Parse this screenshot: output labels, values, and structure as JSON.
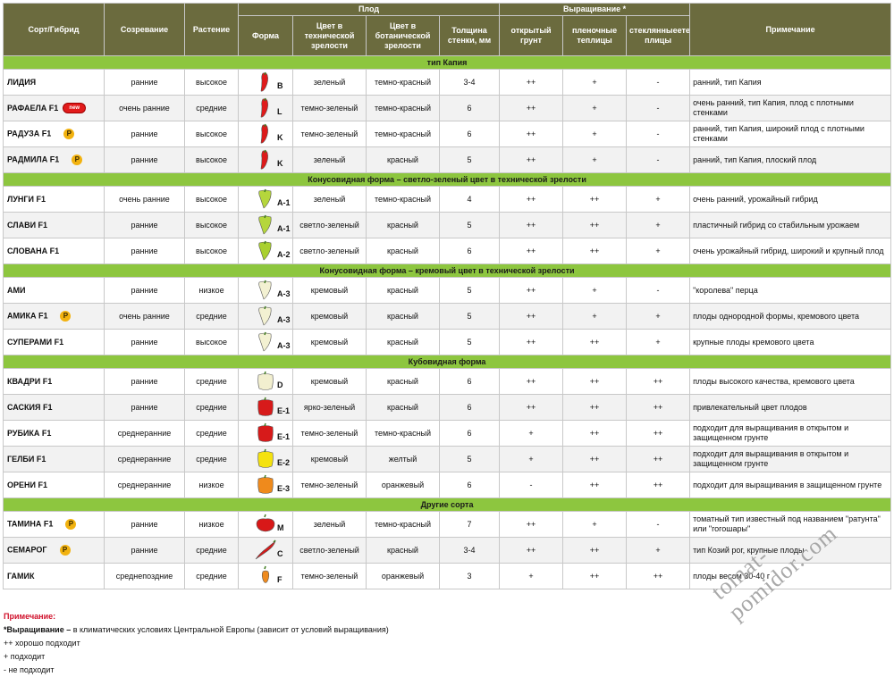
{
  "headers": {
    "variety": "Сорт/Гибрид",
    "ripening": "Созревание",
    "plant": "Растение",
    "fruit": "Плод",
    "form": "Форма",
    "color_tech": "Цвет в технической зрелости",
    "color_bot": "Цвет в ботанической зрелости",
    "wall": "Толщина стенки, мм",
    "growing": "Выращивание *",
    "open": "открытый грунт",
    "film": "пленочные теплицы",
    "glass": "стеклянныеете плицы",
    "note": "Примечание"
  },
  "groups": [
    {
      "title": "тип Капия",
      "rows": [
        {
          "name": "ЛИДИЯ",
          "badge": "",
          "ripening": "ранние",
          "plant": "высокое",
          "form": "B",
          "shape": "kapia",
          "color": "#e01b1b",
          "tech": "зеленый",
          "bot": "темно-красный",
          "wall": "3-4",
          "open": "++",
          "film": "+",
          "glass": "-",
          "note": "ранний, тип Капия"
        },
        {
          "name": "РАФАЕЛА F1",
          "badge": "new",
          "ripening": "очень ранние",
          "plant": "средние",
          "form": "L",
          "shape": "kapia",
          "color": "#e01b1b",
          "tech": "темно-зеленый",
          "bot": "темно-красный",
          "wall": "6",
          "open": "++",
          "film": "+",
          "glass": "-",
          "note": "очень ранний, тип Капия, плод с плотными стенками"
        },
        {
          "name": "РАДУЗА F1",
          "badge": "P",
          "ripening": "ранние",
          "plant": "высокое",
          "form": "K",
          "shape": "kapia",
          "color": "#dd1a1a",
          "tech": "темно-зеленый",
          "bot": "темно-красный",
          "wall": "6",
          "open": "++",
          "film": "+",
          "glass": "-",
          "note": "ранний, тип Капия, широкий плод с плотными стенками"
        },
        {
          "name": "РАДМИЛА F1",
          "badge": "P",
          "ripening": "ранние",
          "plant": "высокое",
          "form": "K",
          "shape": "kapia",
          "color": "#dd1a1a",
          "tech": "зеленый",
          "bot": "красный",
          "wall": "5",
          "open": "++",
          "film": "+",
          "glass": "-",
          "note": "ранний, тип Капия, плоский плод"
        }
      ]
    },
    {
      "title": "Конусовидная форма – светло-зеленый цвет в технической зрелости",
      "rows": [
        {
          "name": "ЛУНГИ F1",
          "badge": "",
          "ripening": "очень ранние",
          "plant": "высокое",
          "form": "A-1",
          "shape": "cone",
          "color": "#b5d63c",
          "tech": "зеленый",
          "bot": "темно-красный",
          "wall": "4",
          "open": "++",
          "film": "++",
          "glass": "+",
          "note": "очень ранний, урожайный гибрид"
        },
        {
          "name": "СЛАВИ F1",
          "badge": "",
          "ripening": "ранние",
          "plant": "высокое",
          "form": "A-1",
          "shape": "cone",
          "color": "#b5d63c",
          "tech": "светло-зеленый",
          "bot": "красный",
          "wall": "5",
          "open": "++",
          "film": "++",
          "glass": "+",
          "note": "пластичный гибрид со стабильным урожаем"
        },
        {
          "name": "СЛОВАНА F1",
          "badge": "",
          "ripening": "ранние",
          "plant": "высокое",
          "form": "A-2",
          "shape": "cone",
          "color": "#a9d030",
          "tech": "светло-зеленый",
          "bot": "красный",
          "wall": "6",
          "open": "++",
          "film": "++",
          "glass": "+",
          "note": "очень урожайный гибрид, широкий и крупный плод"
        }
      ]
    },
    {
      "title": "Конусовидная форма – кремовый цвет в технической зрелости",
      "rows": [
        {
          "name": "АМИ",
          "badge": "",
          "ripening": "ранние",
          "plant": "низкое",
          "form": "A-3",
          "shape": "cone",
          "color": "#f3f1d2",
          "tech": "кремовый",
          "bot": "красный",
          "wall": "5",
          "open": "++",
          "film": "+",
          "glass": "-",
          "note": "\"королева\" перца"
        },
        {
          "name": "АМИКА F1",
          "badge": "P",
          "ripening": "очень ранние",
          "plant": "средние",
          "form": "A-3",
          "shape": "cone",
          "color": "#f3f1d2",
          "tech": "кремовый",
          "bot": "красный",
          "wall": "5",
          "open": "++",
          "film": "+",
          "glass": "+",
          "note": "плоды однородной формы, кремового цвета"
        },
        {
          "name": "СУПЕРАМИ F1",
          "badge": "",
          "ripening": "ранние",
          "plant": "высокое",
          "form": "A-3",
          "shape": "cone",
          "color": "#f3f1d2",
          "tech": "кремовый",
          "bot": "красный",
          "wall": "5",
          "open": "++",
          "film": "++",
          "glass": "+",
          "note": "крупные плоды кремового цвета"
        }
      ]
    },
    {
      "title": "Кубовидная форма",
      "rows": [
        {
          "name": "КВАДРИ F1",
          "badge": "",
          "ripening": "ранние",
          "plant": "средние",
          "form": "D",
          "shape": "cube",
          "color": "#f2efcf",
          "tech": "кремовый",
          "bot": "красный",
          "wall": "6",
          "open": "++",
          "film": "++",
          "glass": "++",
          "note": "плоды высокого качества, кремового цвета"
        },
        {
          "name": "САСКИЯ F1",
          "badge": "",
          "ripening": "ранние",
          "plant": "средние",
          "form": "E-1",
          "shape": "cube",
          "color": "#d71a1a",
          "tech": "ярко-зеленый",
          "bot": "красный",
          "wall": "6",
          "open": "++",
          "film": "++",
          "glass": "++",
          "note": "привлекательный цвет плодов"
        },
        {
          "name": "РУБИКА F1",
          "badge": "",
          "ripening": "среднеранние",
          "plant": "средние",
          "form": "E-1",
          "shape": "cube",
          "color": "#d71a1a",
          "tech": "темно-зеленый",
          "bot": "темно-красный",
          "wall": "6",
          "open": "+",
          "film": "++",
          "glass": "++",
          "note": "подходит для выращивания в открытом и защищенном грунте"
        },
        {
          "name": "ГЕЛБИ F1",
          "badge": "",
          "ripening": "среднеранние",
          "plant": "средние",
          "form": "E-2",
          "shape": "cube",
          "color": "#f4e20e",
          "tech": "кремовый",
          "bot": "желтый",
          "wall": "5",
          "open": "+",
          "film": "++",
          "glass": "++",
          "note": "подходит для выращивания в открытом и защищенном грунте"
        },
        {
          "name": "ОРЕНИ F1",
          "badge": "",
          "ripening": "среднеранние",
          "plant": "низкое",
          "form": "E-3",
          "shape": "cube",
          "color": "#ef8a1c",
          "tech": "темно-зеленый",
          "bot": "оранжевый",
          "wall": "6",
          "open": "-",
          "film": "++",
          "glass": "++",
          "note": "подходит для выращивания в защищенном грунте"
        }
      ]
    },
    {
      "title": "Другие сорта",
      "rows": [
        {
          "name": "ТАМИНА F1",
          "badge": "P",
          "ripening": "ранние",
          "plant": "низкое",
          "form": "M",
          "shape": "tomato",
          "color": "#d81818",
          "tech": "зеленый",
          "bot": "темно-красный",
          "wall": "7",
          "open": "++",
          "film": "+",
          "glass": "-",
          "note": "томатный тип известный под названием \"ратунта\" или \"гогошары\""
        },
        {
          "name": "СЕМАРОГ",
          "badge": "P",
          "ripening": "ранние",
          "plant": "средние",
          "form": "C",
          "shape": "horn",
          "color": "#d81818",
          "tech": "светло-зеленый",
          "bot": "красный",
          "wall": "3-4",
          "open": "++",
          "film": "++",
          "glass": "+",
          "note": "тип Козий рог, крупные плоды"
        },
        {
          "name": "ГАМИК",
          "badge": "",
          "ripening": "среднепоздние",
          "plant": "средние",
          "form": "F",
          "shape": "small",
          "color": "#ee8a1e",
          "tech": "темно-зеленый",
          "bot": "оранжевый",
          "wall": "3",
          "open": "+",
          "film": "++",
          "glass": "++",
          "note": "плоды весом 30-40 г"
        }
      ]
    }
  ],
  "footer": {
    "title": "Примечание:",
    "line1_bold": "*Выращивание –",
    "line1": " в климатических условиях Центральной Европы (зависит от условий выращивания)",
    "line2": "++ хорошо подходит",
    "line3": "+ подходит",
    "line4": "- не подходит"
  },
  "watermark": "tomat-pomidor.com"
}
